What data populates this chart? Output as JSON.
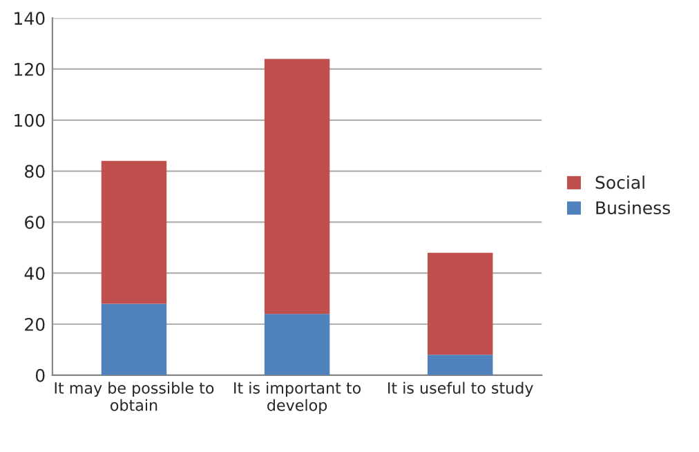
{
  "chart_data": {
    "type": "bar",
    "stacked": true,
    "categories": [
      "It may be possible to\nobtain",
      "It is important to\ndevelop",
      "It is useful to study"
    ],
    "series": [
      {
        "name": "Business",
        "color": "#4f81bd",
        "values": [
          28,
          24,
          8
        ]
      },
      {
        "name": "Social",
        "color": "#c0504d",
        "values": [
          56,
          100,
          40
        ]
      }
    ],
    "ylim": [
      0,
      140
    ],
    "yticks": [
      0,
      20,
      40,
      60,
      80,
      100,
      120,
      140
    ],
    "grid": "y",
    "legend": "right"
  }
}
